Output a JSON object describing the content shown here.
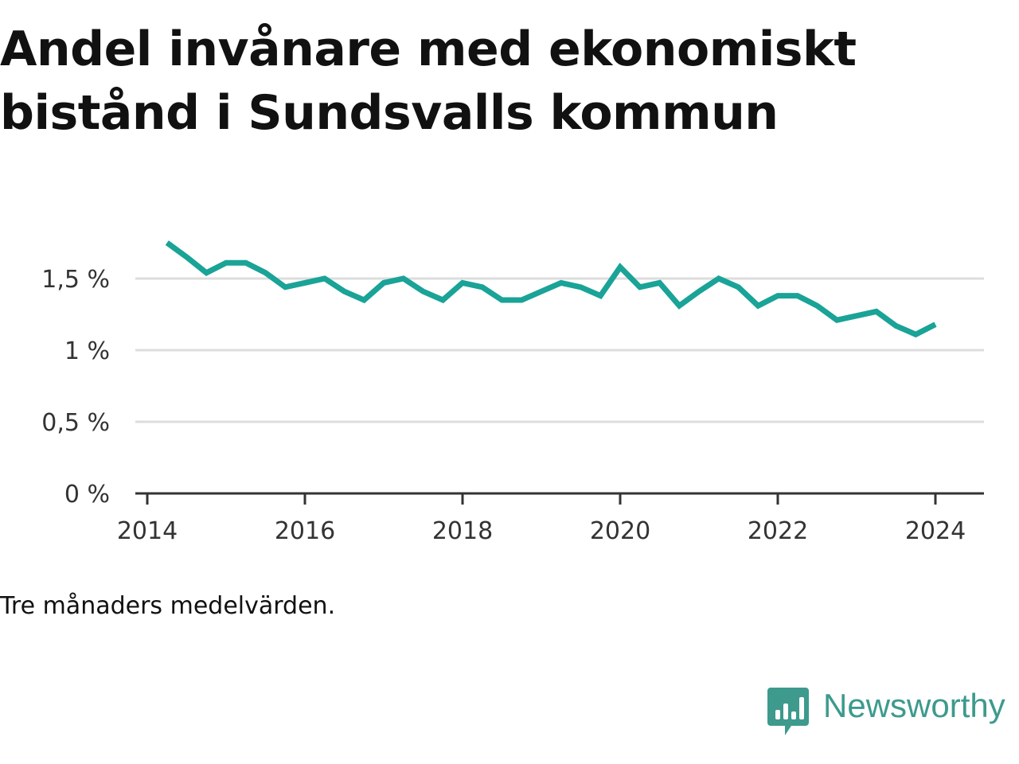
{
  "title": "Andel invånare med ekonomiskt bistånd i Sundsvalls kommun",
  "note": "Tre månaders medelvärden.",
  "brand": {
    "name": "Newsworthy",
    "icon": "newsworthy-logo-icon",
    "color": "#3d9a8d"
  },
  "colors": {
    "line": "#1aa397",
    "grid": "#dddddd",
    "axis": "#333333"
  },
  "chart_data": {
    "type": "line",
    "title": "Andel invånare med ekonomiskt bistånd i Sundsvalls kommun",
    "xlabel": "",
    "ylabel": "",
    "x_ticks": [
      "2014",
      "2016",
      "2018",
      "2020",
      "2022",
      "2024"
    ],
    "y_ticks": [
      "0 %",
      "0,5 %",
      "1 %",
      "1,5 %"
    ],
    "ylim": [
      0,
      2.0
    ],
    "xlim": [
      "2014-01",
      "2024-07"
    ],
    "grid": true,
    "series": [
      {
        "x": [
          "2014-04",
          "2014-07",
          "2014-10",
          "2015-01",
          "2015-04",
          "2015-07",
          "2015-10",
          "2016-01",
          "2016-04",
          "2016-07",
          "2016-10",
          "2017-01",
          "2017-04",
          "2017-07",
          "2017-10",
          "2018-01",
          "2018-04",
          "2018-07",
          "2018-10",
          "2019-01",
          "2019-04",
          "2019-07",
          "2019-10",
          "2020-01",
          "2020-04",
          "2020-07",
          "2020-10",
          "2021-01",
          "2021-04",
          "2021-07",
          "2021-10",
          "2022-01",
          "2022-04",
          "2022-07",
          "2022-10",
          "2023-01",
          "2023-04",
          "2023-07",
          "2023-10",
          "2024-01"
        ],
        "values": [
          1.75,
          1.65,
          1.54,
          1.61,
          1.61,
          1.54,
          1.44,
          1.47,
          1.5,
          1.41,
          1.35,
          1.47,
          1.5,
          1.41,
          1.35,
          1.47,
          1.44,
          1.35,
          1.35,
          1.41,
          1.47,
          1.44,
          1.38,
          1.58,
          1.44,
          1.47,
          1.31,
          1.41,
          1.5,
          1.44,
          1.31,
          1.38,
          1.38,
          1.31,
          1.21,
          1.24,
          1.27,
          1.17,
          1.11,
          1.18
        ]
      }
    ]
  }
}
